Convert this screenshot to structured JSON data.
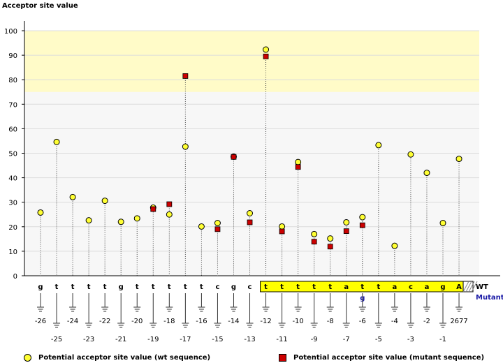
{
  "chart_data": {
    "type": "scatter",
    "ylabel": "Acceptor site value",
    "ylim": [
      0,
      100
    ],
    "yticks": [
      "0",
      "10",
      "20",
      "30",
      "40",
      "50",
      "60",
      "70",
      "80",
      "90",
      "100"
    ],
    "positions": [
      "-26",
      "-25",
      "-24",
      "-23",
      "-22",
      "-21",
      "-20",
      "-19",
      "-18",
      "-17",
      "-16",
      "-15",
      "-14",
      "-13",
      "-12",
      "-11",
      "-10",
      "-9",
      "-8",
      "-7",
      "-6",
      "-5",
      "-4",
      "-3",
      "-2",
      "-1",
      "2677"
    ],
    "sequence_wt": [
      "g",
      "t",
      "t",
      "t",
      "t",
      "g",
      "t",
      "t",
      "t",
      "t",
      "t",
      "c",
      "g",
      "c",
      "t",
      "t",
      "t",
      "t",
      "t",
      "a",
      "t",
      "t",
      "a",
      "c",
      "a",
      "g",
      "A"
    ],
    "mutant_letters": {
      "20": "g"
    },
    "highlight_start_index": 14,
    "highlight_range_y": [
      75,
      100
    ],
    "wt_label": "WT",
    "mutant_label": "Mutant",
    "series": [
      {
        "name": "Potential acceptor site value (wt sequence)",
        "marker": "circle",
        "color": "#ffff33",
        "values": [
          25.8,
          54.6,
          32.1,
          22.6,
          30.6,
          22.0,
          23.4,
          27.8,
          25.0,
          52.7,
          20.1,
          21.5,
          48.6,
          25.5,
          92.3,
          20.1,
          46.4,
          17.0,
          15.2,
          21.8,
          23.9,
          53.3,
          12.2,
          49.5,
          42.0,
          21.5,
          47.7
        ]
      },
      {
        "name": "Potential acceptor site value (mutant sequence)",
        "marker": "square",
        "color": "#cc0000",
        "values": [
          null,
          null,
          null,
          null,
          null,
          null,
          null,
          27.2,
          29.2,
          81.5,
          null,
          19.0,
          48.5,
          21.8,
          89.5,
          18.1,
          44.4,
          13.9,
          11.9,
          18.2,
          20.6,
          null,
          null,
          null,
          null,
          null,
          null
        ]
      }
    ]
  }
}
